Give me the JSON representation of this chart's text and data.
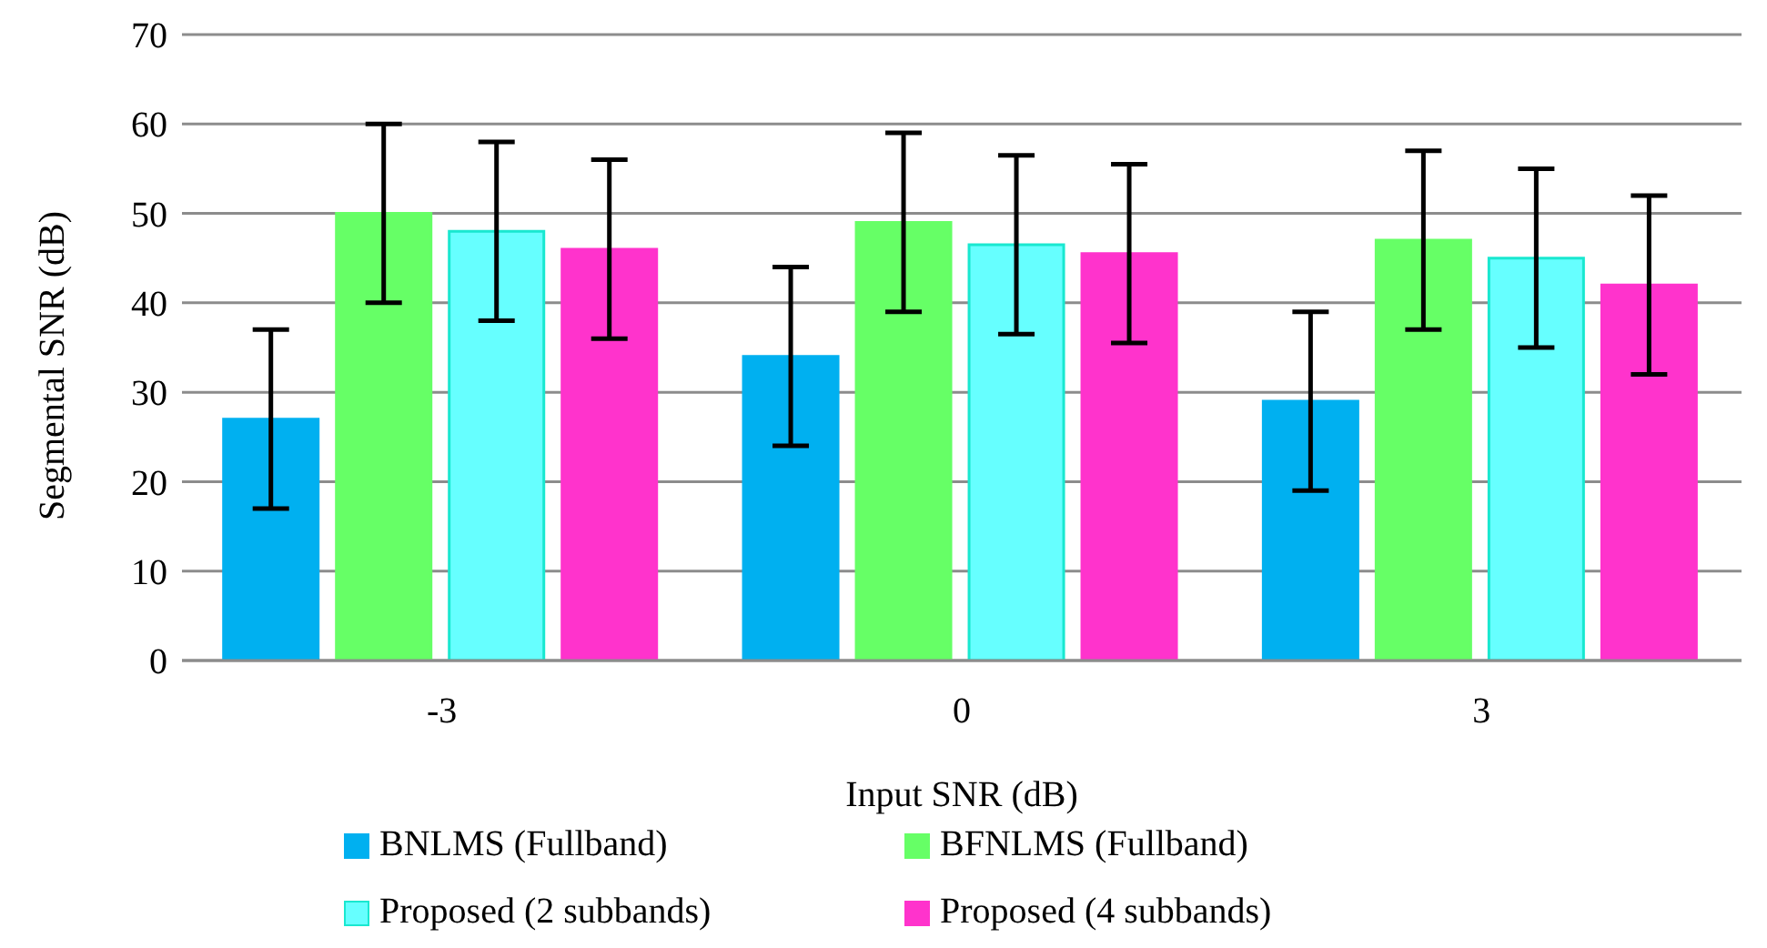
{
  "chart_data": {
    "type": "bar",
    "xlabel": "Input SNR (dB)",
    "ylabel": "Segmental SNR (dB)",
    "categories": [
      "-3",
      "0",
      "3"
    ],
    "series": [
      {
        "name": "BNLMS (Fullband)",
        "color": "#00b0f0",
        "values": [
          27,
          34,
          29
        ],
        "errors": [
          10,
          10,
          10
        ]
      },
      {
        "name": "BFNLMS (Fullband)",
        "color": "#66ff66",
        "values": [
          50,
          49,
          47
        ],
        "errors": [
          10,
          10,
          10
        ]
      },
      {
        "name": "Proposed (2 subbands)",
        "color": "#66ffff",
        "values": [
          48,
          46.5,
          45
        ],
        "errors": [
          10,
          10,
          10
        ]
      },
      {
        "name": "Proposed (4 subbands)",
        "color": "#ff33cc",
        "values": [
          46,
          45.5,
          42
        ],
        "errors": [
          10,
          10,
          10
        ]
      }
    ],
    "ylim": [
      0,
      70
    ],
    "yticks": [
      0,
      10,
      20,
      30,
      40,
      50,
      60,
      70
    ],
    "grid": "y",
    "legend": "bottom"
  }
}
